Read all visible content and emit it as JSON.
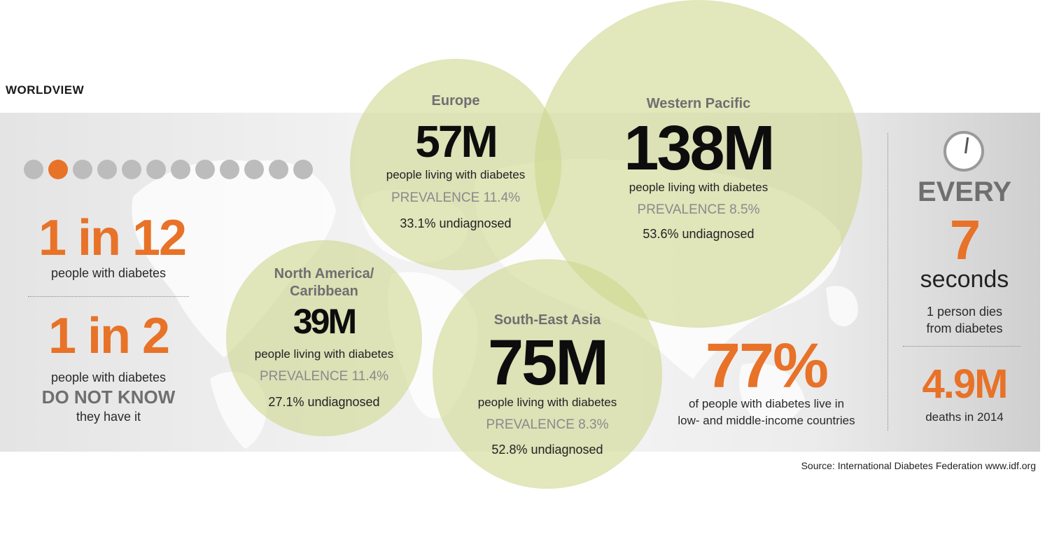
{
  "heading": "WORLDVIEW",
  "colors": {
    "accent": "#e87228",
    "bubble": "#cdd58c",
    "band": "#ececec"
  },
  "progress": {
    "total_dots": 12,
    "active_index": 1
  },
  "left": {
    "stat1_value": "1 in 12",
    "stat1_caption": "people with diabetes",
    "stat2_value": "1 in 2",
    "stat2_line1": "people with diabetes",
    "stat2_line2": "DO NOT KNOW",
    "stat2_line3": "they have it"
  },
  "regions": {
    "europe": {
      "name": "Europe",
      "count": "57M",
      "caption": "people living with diabetes",
      "prevalence": "PREVALENCE 11.4%",
      "undiagnosed": "33.1% undiagnosed"
    },
    "western_pacific": {
      "name": "Western Pacific",
      "count": "138M",
      "caption": "people living with diabetes",
      "prevalence": "PREVALENCE 8.5%",
      "undiagnosed": "53.6% undiagnosed"
    },
    "north_america": {
      "name_line1": "North America/",
      "name_line2": "Caribbean",
      "count": "39M",
      "caption": "people living with diabetes",
      "prevalence": "PREVALENCE 11.4%",
      "undiagnosed": "27.1% undiagnosed"
    },
    "south_east_asia": {
      "name": "South-East Asia",
      "count": "75M",
      "caption": "people living with diabetes",
      "prevalence": "PREVALENCE 8.3%",
      "undiagnosed": "52.8% undiagnosed"
    }
  },
  "income": {
    "value": "77%",
    "line1": "of people with diabetes live in",
    "line2": "low- and middle-income countries"
  },
  "right": {
    "clock_icon": "clock-icon",
    "every": "EVERY",
    "seconds_value": "7",
    "seconds_label": "seconds",
    "line1": "1 person dies",
    "line2": "from diabetes",
    "deaths_value": "4.9M",
    "deaths_label": "deaths in 2014"
  },
  "source": "Source: International Diabetes Federation www.idf.org"
}
